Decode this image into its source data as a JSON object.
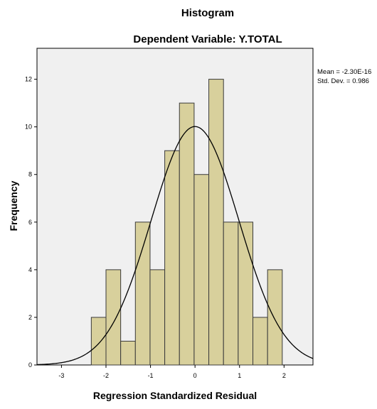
{
  "chart_data": {
    "type": "bar",
    "title": "Histogram",
    "subtitle": "Dependent Variable: Y.TOTAL",
    "xlabel": "Regression Standardized Residual",
    "ylabel": "Frequency",
    "xlim": [
      -3.55,
      2.65
    ],
    "ylim": [
      0,
      13.3
    ],
    "x_ticks": [
      -3,
      -2,
      -1,
      0,
      1,
      2
    ],
    "y_ticks": [
      0,
      2,
      4,
      6,
      8,
      10,
      12
    ],
    "bin_width": 0.33,
    "bins": [
      {
        "x0": -2.33,
        "x1": -2.0,
        "count": 2
      },
      {
        "x0": -2.0,
        "x1": -1.67,
        "count": 4
      },
      {
        "x0": -1.67,
        "x1": -1.34,
        "count": 1
      },
      {
        "x0": -1.34,
        "x1": -1.01,
        "count": 6
      },
      {
        "x0": -1.01,
        "x1": -0.68,
        "count": 4
      },
      {
        "x0": -0.68,
        "x1": -0.35,
        "count": 9
      },
      {
        "x0": -0.35,
        "x1": -0.02,
        "count": 11
      },
      {
        "x0": -0.02,
        "x1": 0.31,
        "count": 8
      },
      {
        "x0": 0.31,
        "x1": 0.64,
        "count": 12
      },
      {
        "x0": 0.64,
        "x1": 0.97,
        "count": 6
      },
      {
        "x0": 0.97,
        "x1": 1.3,
        "count": 6
      },
      {
        "x0": 1.3,
        "x1": 1.63,
        "count": 2
      },
      {
        "x0": 1.63,
        "x1": 1.96,
        "count": 4
      }
    ],
    "normal_curve": {
      "mean": 0.0,
      "std": 0.986,
      "n": 75
    },
    "stats": {
      "mean_label": "Mean = -2.30E-16",
      "std_label": "Std. Dev. = 0.986"
    },
    "grid": false,
    "legend": "none",
    "colors": {
      "bar_fill": "#d8d09c",
      "bar_stroke": "#3a3a3a",
      "plot_background": "#f0f0f0",
      "curve": "#000000"
    }
  }
}
